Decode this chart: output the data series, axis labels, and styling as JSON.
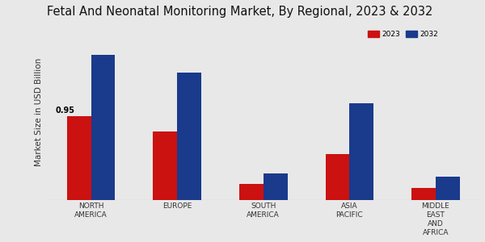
{
  "title": "Fetal And Neonatal Monitoring Market, By Regional, 2023 & 2032",
  "ylabel": "Market Size in USD Billion",
  "categories": [
    "NORTH\nAMERICA",
    "EUROPE",
    "SOUTH\nAMERICA",
    "ASIA\nPACIFIC",
    "MIDDLE\nEAST\nAND\nAFRICA"
  ],
  "values_2023": [
    0.95,
    0.78,
    0.18,
    0.52,
    0.14
  ],
  "values_2032": [
    1.65,
    1.45,
    0.3,
    1.1,
    0.27
  ],
  "color_2023": "#cc1111",
  "color_2032": "#1a3a8c",
  "bar_width": 0.28,
  "annotation_text": "0.95",
  "background_color": "#e8e8e8",
  "legend_labels": [
    "2023",
    "2032"
  ],
  "ylim": [
    0,
    2.0
  ],
  "title_fontsize": 10.5,
  "axis_label_fontsize": 7.5,
  "tick_fontsize": 6.5,
  "annotation_fontsize": 7
}
